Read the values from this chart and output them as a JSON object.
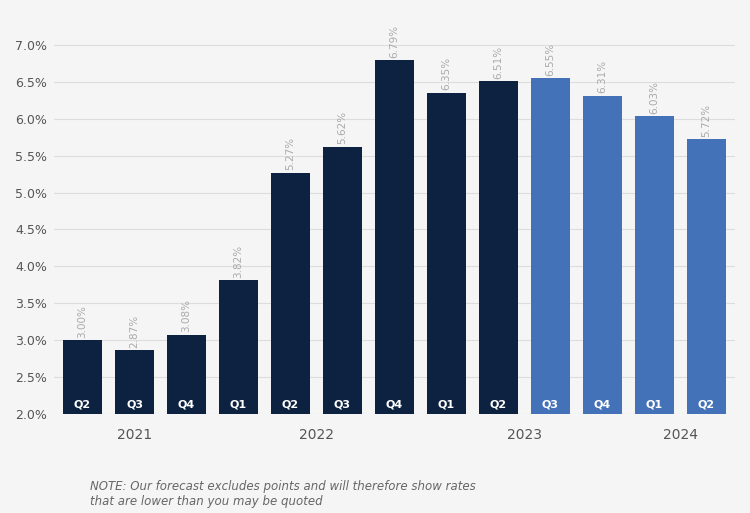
{
  "categories": [
    "Q2",
    "Q3",
    "Q4",
    "Q1",
    "Q2",
    "Q3",
    "Q4",
    "Q1",
    "Q2",
    "Q3",
    "Q4",
    "Q1",
    "Q2"
  ],
  "years": [
    "2021",
    "2021",
    "2021",
    "2022",
    "2022",
    "2022",
    "2022",
    "2023",
    "2023",
    "2023",
    "2023",
    "2024",
    "2024"
  ],
  "values": [
    3.0,
    2.87,
    3.08,
    3.82,
    5.27,
    5.62,
    6.79,
    6.35,
    6.51,
    6.55,
    6.31,
    6.03,
    5.72
  ],
  "labels": [
    "3.00%",
    "2.87%",
    "3.08%",
    "3.82%",
    "5.27%",
    "5.62%",
    "6.79%",
    "6.35%",
    "6.51%",
    "6.55%",
    "6.31%",
    "6.03%",
    "5.72%"
  ],
  "colors": [
    "#0d2240",
    "#0d2240",
    "#0d2240",
    "#0d2240",
    "#0d2240",
    "#0d2240",
    "#0d2240",
    "#0d2240",
    "#0d2240",
    "#4472b8",
    "#4472b8",
    "#4472b8",
    "#4472b8"
  ],
  "year_groups": {
    "2021": [
      0,
      1,
      2
    ],
    "2022": [
      3,
      4,
      5,
      6
    ],
    "2023": [
      7,
      8,
      9,
      10
    ],
    "2024": [
      11,
      12
    ]
  },
  "ylim": [
    2.0,
    7.4
  ],
  "yticks": [
    2.0,
    2.5,
    3.0,
    3.5,
    4.0,
    4.5,
    5.0,
    5.5,
    6.0,
    6.5,
    7.0
  ],
  "ytick_labels": [
    "2.0%",
    "2.5%",
    "3.0%",
    "3.5%",
    "4.0%",
    "4.5%",
    "5.0%",
    "5.5%",
    "6.0%",
    "6.5%",
    "7.0%"
  ],
  "background_color": "#f5f5f5",
  "grid_color": "#dddddd",
  "bar_label_color": "#aaaaaa",
  "quarter_label_color": "#ffffff",
  "ytick_color": "#555555",
  "year_label_color": "#555555",
  "note_text": "NOTE: Our forecast excludes points and will therefore show rates\nthat are lower than you may be quoted",
  "label_fontsize": 7.5,
  "quarter_fontsize": 8,
  "year_fontsize": 10,
  "ytick_fontsize": 9,
  "note_fontsize": 8.5,
  "bar_width": 0.75
}
